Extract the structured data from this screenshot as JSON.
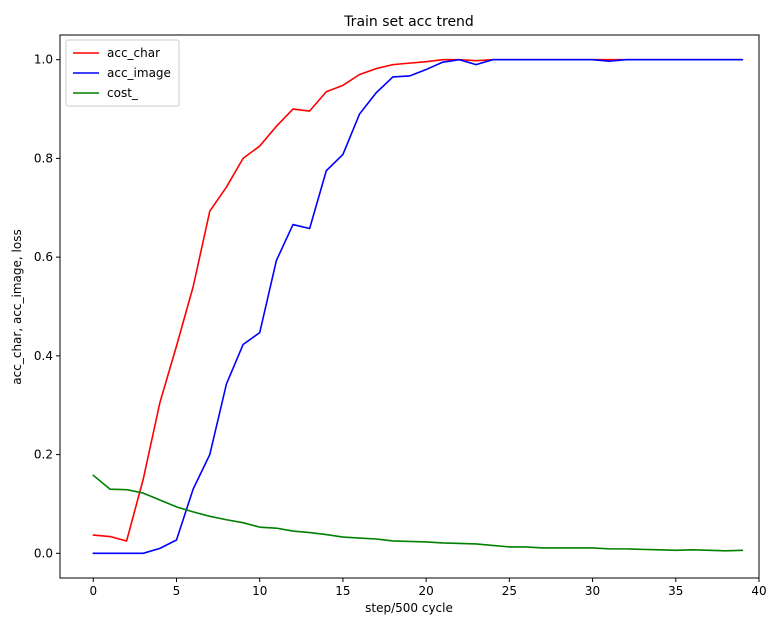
{
  "chart_data": {
    "type": "line",
    "title": "Train set acc trend",
    "xlabel": "step/500 cycle",
    "ylabel": "acc_char, acc_image, loss",
    "xlim": [
      -2,
      40
    ],
    "ylim": [
      -0.05,
      1.05
    ],
    "xticks": [
      0,
      5,
      10,
      15,
      20,
      25,
      30,
      35,
      40
    ],
    "yticks": [
      0.0,
      0.2,
      0.4,
      0.6,
      0.8,
      1.0
    ],
    "xtick_labels": [
      "0",
      "5",
      "10",
      "15",
      "20",
      "25",
      "30",
      "35",
      "40"
    ],
    "ytick_labels": [
      "0.0",
      "0.2",
      "0.4",
      "0.6",
      "0.8",
      "1.0"
    ],
    "grid": false,
    "legend_position": "top-left",
    "x": [
      0,
      1,
      2,
      3,
      4,
      5,
      6,
      7,
      8,
      9,
      10,
      11,
      12,
      13,
      14,
      15,
      16,
      17,
      18,
      19,
      20,
      21,
      22,
      23,
      24,
      25,
      26,
      27,
      28,
      29,
      30,
      31,
      32,
      33,
      34,
      35,
      36,
      37,
      38,
      39
    ],
    "series": [
      {
        "name": "acc_char",
        "color": "#ff0000",
        "values": [
          0.037,
          0.034,
          0.025,
          0.15,
          0.305,
          0.42,
          0.54,
          0.693,
          0.742,
          0.8,
          0.825,
          0.865,
          0.9,
          0.896,
          0.935,
          0.948,
          0.97,
          0.982,
          0.99,
          0.993,
          0.996,
          1.0,
          1.0,
          0.998,
          1.0,
          1.0,
          1.0,
          1.0,
          1.0,
          1.0,
          1.0,
          1.0,
          1.0,
          1.0,
          1.0,
          1.0,
          1.0,
          1.0,
          1.0,
          1.0
        ]
      },
      {
        "name": "acc_image",
        "color": "#0000ff",
        "values": [
          0.0,
          0.0,
          0.0,
          0.0,
          0.01,
          0.027,
          0.13,
          0.2,
          0.343,
          0.423,
          0.447,
          0.593,
          0.666,
          0.658,
          0.775,
          0.808,
          0.89,
          0.933,
          0.965,
          0.967,
          0.98,
          0.995,
          1.0,
          0.99,
          1.0,
          1.0,
          1.0,
          1.0,
          1.0,
          1.0,
          1.0,
          0.997,
          1.0,
          1.0,
          1.0,
          1.0,
          1.0,
          1.0,
          1.0,
          1.0
        ]
      },
      {
        "name": "cost_",
        "color": "#008000",
        "values": [
          0.158,
          0.13,
          0.129,
          0.122,
          0.108,
          0.094,
          0.084,
          0.075,
          0.068,
          0.062,
          0.053,
          0.051,
          0.045,
          0.042,
          0.038,
          0.033,
          0.031,
          0.029,
          0.025,
          0.024,
          0.023,
          0.021,
          0.02,
          0.019,
          0.016,
          0.013,
          0.013,
          0.011,
          0.011,
          0.011,
          0.011,
          0.009,
          0.009,
          0.008,
          0.007,
          0.006,
          0.007,
          0.006,
          0.005,
          0.006
        ]
      }
    ]
  }
}
